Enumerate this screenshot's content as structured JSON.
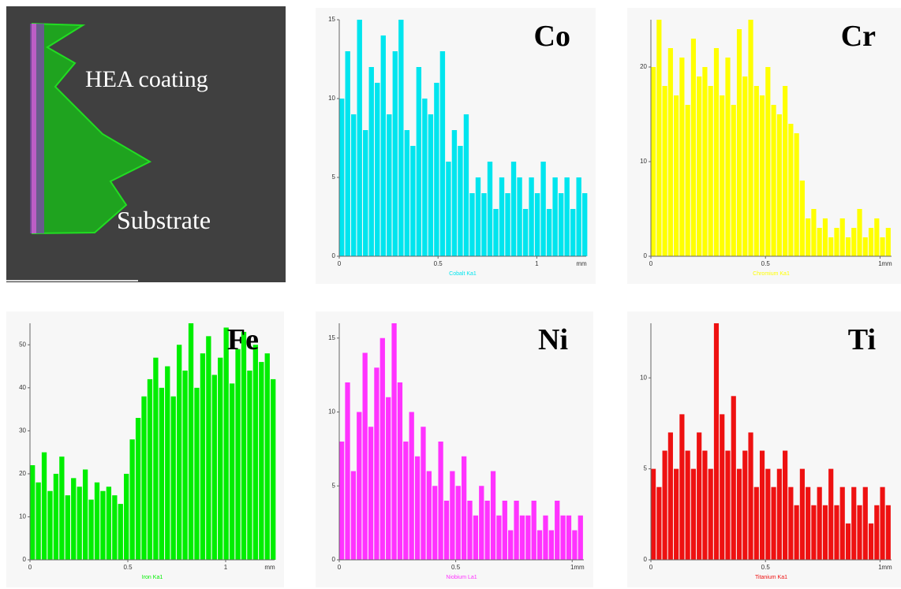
{
  "image_panel": {
    "labels": [
      "HEA coating",
      "Substrate"
    ]
  },
  "chart_data": [
    {
      "type": "bar",
      "title": "Co",
      "xlabel": "Cobalt Ka1",
      "x_unit": "mm",
      "color": "#00e5ee",
      "xlim": [
        0,
        1.25
      ],
      "xticks": [
        0,
        0.5,
        1
      ],
      "ylim": [
        0,
        15
      ],
      "yticks": [
        0,
        5,
        10,
        15
      ],
      "x": [
        0,
        0.03,
        0.06,
        0.09,
        0.12,
        0.15,
        0.18,
        0.21,
        0.24,
        0.27,
        0.3,
        0.33,
        0.36,
        0.39,
        0.42,
        0.45,
        0.48,
        0.51,
        0.54,
        0.57,
        0.6,
        0.63,
        0.66,
        0.69,
        0.72,
        0.75,
        0.78,
        0.81,
        0.84,
        0.87,
        0.9,
        0.93,
        0.96,
        0.99,
        1.02,
        1.05,
        1.08,
        1.11,
        1.14,
        1.17,
        1.2,
        1.23
      ],
      "values": [
        10,
        13,
        9,
        15,
        8,
        12,
        11,
        14,
        9,
        13,
        15,
        8,
        7,
        12,
        10,
        9,
        11,
        13,
        6,
        8,
        7,
        9,
        4,
        5,
        4,
        6,
        3,
        5,
        4,
        6,
        5,
        3,
        5,
        4,
        6,
        3,
        5,
        4,
        5,
        3,
        5,
        4
      ]
    },
    {
      "type": "bar",
      "title": "Cr",
      "xlabel": "Chromium Ka1",
      "x_unit": "mm",
      "color": "#ffff00",
      "xlim": [
        0,
        1.05
      ],
      "xticks": [
        0,
        0.5,
        1
      ],
      "ylim": [
        0,
        25
      ],
      "yticks": [
        0,
        10,
        20
      ],
      "x": [
        0,
        0.025,
        0.05,
        0.075,
        0.1,
        0.125,
        0.15,
        0.175,
        0.2,
        0.225,
        0.25,
        0.275,
        0.3,
        0.325,
        0.35,
        0.375,
        0.4,
        0.425,
        0.45,
        0.475,
        0.5,
        0.525,
        0.55,
        0.575,
        0.6,
        0.625,
        0.65,
        0.675,
        0.7,
        0.725,
        0.75,
        0.775,
        0.8,
        0.825,
        0.85,
        0.875,
        0.9,
        0.925,
        0.95,
        0.975,
        1,
        1.025
      ],
      "values": [
        20,
        25,
        18,
        22,
        17,
        21,
        16,
        23,
        19,
        20,
        18,
        22,
        17,
        21,
        16,
        24,
        19,
        25,
        18,
        17,
        20,
        16,
        15,
        18,
        14,
        13,
        8,
        4,
        5,
        3,
        4,
        2,
        3,
        4,
        2,
        3,
        5,
        2,
        3,
        4,
        2,
        3
      ]
    },
    {
      "type": "bar",
      "title": "Fe",
      "xlabel": "Iron Ka1",
      "x_unit": "mm",
      "color": "#00ee00",
      "xlim": [
        0,
        1.25
      ],
      "xticks": [
        0,
        0.5,
        1
      ],
      "ylim": [
        0,
        55
      ],
      "yticks": [
        0,
        10,
        20,
        30,
        40,
        50
      ],
      "x": [
        0,
        0.03,
        0.06,
        0.09,
        0.12,
        0.15,
        0.18,
        0.21,
        0.24,
        0.27,
        0.3,
        0.33,
        0.36,
        0.39,
        0.42,
        0.45,
        0.48,
        0.51,
        0.54,
        0.57,
        0.6,
        0.63,
        0.66,
        0.69,
        0.72,
        0.75,
        0.78,
        0.81,
        0.84,
        0.87,
        0.9,
        0.93,
        0.96,
        0.99,
        1.02,
        1.05,
        1.08,
        1.11,
        1.14,
        1.17,
        1.2,
        1.23
      ],
      "values": [
        22,
        18,
        25,
        16,
        20,
        24,
        15,
        19,
        17,
        21,
        14,
        18,
        16,
        17,
        15,
        13,
        20,
        28,
        33,
        38,
        42,
        47,
        40,
        45,
        38,
        50,
        44,
        55,
        40,
        48,
        52,
        43,
        47,
        54,
        41,
        49,
        53,
        44,
        50,
        46,
        48,
        42
      ]
    },
    {
      "type": "bar",
      "title": "Ni",
      "xlabel": "Niobium La1",
      "x_unit": "mm",
      "color": "#ff33ff",
      "xlim": [
        0,
        1.05
      ],
      "xticks": [
        0,
        0.5,
        1
      ],
      "ylim": [
        0,
        16
      ],
      "yticks": [
        0,
        5,
        10,
        15
      ],
      "x": [
        0,
        0.025,
        0.05,
        0.075,
        0.1,
        0.125,
        0.15,
        0.175,
        0.2,
        0.225,
        0.25,
        0.275,
        0.3,
        0.325,
        0.35,
        0.375,
        0.4,
        0.425,
        0.45,
        0.475,
        0.5,
        0.525,
        0.55,
        0.575,
        0.6,
        0.625,
        0.65,
        0.675,
        0.7,
        0.725,
        0.75,
        0.775,
        0.8,
        0.825,
        0.85,
        0.875,
        0.9,
        0.925,
        0.95,
        0.975,
        1,
        1.025
      ],
      "values": [
        8,
        12,
        6,
        10,
        14,
        9,
        13,
        15,
        11,
        16,
        12,
        8,
        10,
        7,
        9,
        6,
        5,
        8,
        4,
        6,
        5,
        7,
        4,
        3,
        5,
        4,
        6,
        3,
        4,
        2,
        4,
        3,
        3,
        4,
        2,
        3,
        2,
        4,
        3,
        3,
        2,
        3
      ]
    },
    {
      "type": "bar",
      "title": "Ti",
      "xlabel": "Titanium Ka1",
      "x_unit": "mm",
      "color": "#ee1111",
      "xlim": [
        0,
        1.05
      ],
      "xticks": [
        0,
        0.5,
        1
      ],
      "ylim": [
        0,
        13
      ],
      "yticks": [
        0,
        5,
        10
      ],
      "x": [
        0,
        0.025,
        0.05,
        0.075,
        0.1,
        0.125,
        0.15,
        0.175,
        0.2,
        0.225,
        0.25,
        0.275,
        0.3,
        0.325,
        0.35,
        0.375,
        0.4,
        0.425,
        0.45,
        0.475,
        0.5,
        0.525,
        0.55,
        0.575,
        0.6,
        0.625,
        0.65,
        0.675,
        0.7,
        0.725,
        0.75,
        0.775,
        0.8,
        0.825,
        0.85,
        0.875,
        0.9,
        0.925,
        0.95,
        0.975,
        1,
        1.025
      ],
      "values": [
        5,
        4,
        6,
        7,
        5,
        8,
        6,
        5,
        7,
        6,
        5,
        13,
        8,
        6,
        9,
        5,
        6,
        7,
        4,
        6,
        5,
        4,
        5,
        6,
        4,
        3,
        5,
        4,
        3,
        4,
        3,
        5,
        3,
        4,
        2,
        4,
        3,
        4,
        2,
        3,
        4,
        3
      ]
    }
  ]
}
